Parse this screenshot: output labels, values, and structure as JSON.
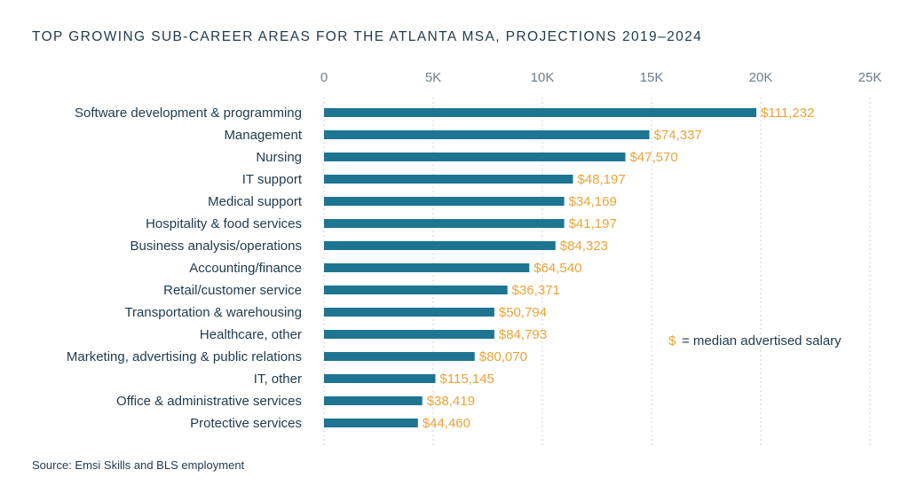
{
  "title": "TOP GROWING SUB-CAREER AREAS FOR THE ATLANTA MSA, PROJECTIONS 2019–2024",
  "source": "Source: Emsi Skills and BLS employment",
  "legend": {
    "symbol": "$",
    "text": "= median advertised salary"
  },
  "colors": {
    "bar": "#1d7591",
    "salary": "#e8a43a",
    "text": "#1f3a4d",
    "tick": "#6b7f8c",
    "grid": "#c9d2d8"
  },
  "chart_data": {
    "type": "bar",
    "orientation": "horizontal",
    "xlim": [
      0,
      25000
    ],
    "ticks": [
      0,
      5000,
      10000,
      15000,
      20000,
      25000
    ],
    "tick_labels": [
      "0",
      "5K",
      "10K",
      "15K",
      "20K",
      "25K"
    ],
    "grid": true,
    "categories": [
      "Software development & programming",
      "Management",
      "Nursing",
      "IT support",
      "Medical support",
      "Hospitality & food services",
      "Business analysis/operations",
      "Accounting/finance",
      "Retail/customer service",
      "Transportation & warehousing",
      "Healthcare, other",
      "Marketing, advertising & public relations",
      "IT, other",
      "Office & administrative services",
      "Protective services"
    ],
    "values": [
      19800,
      14900,
      13800,
      11400,
      11000,
      11000,
      10600,
      9400,
      8400,
      7800,
      7800,
      6900,
      5100,
      4500,
      4300
    ],
    "salary_labels": [
      "$111,232",
      "$74,337",
      "$47,570",
      "$48,197",
      "$34,169",
      "$41,197",
      "$84,323",
      "$64,540",
      "$36,371",
      "$50,794",
      "$84,793",
      "$80,070",
      "$115,145",
      "$38,419",
      "$44,460"
    ]
  }
}
